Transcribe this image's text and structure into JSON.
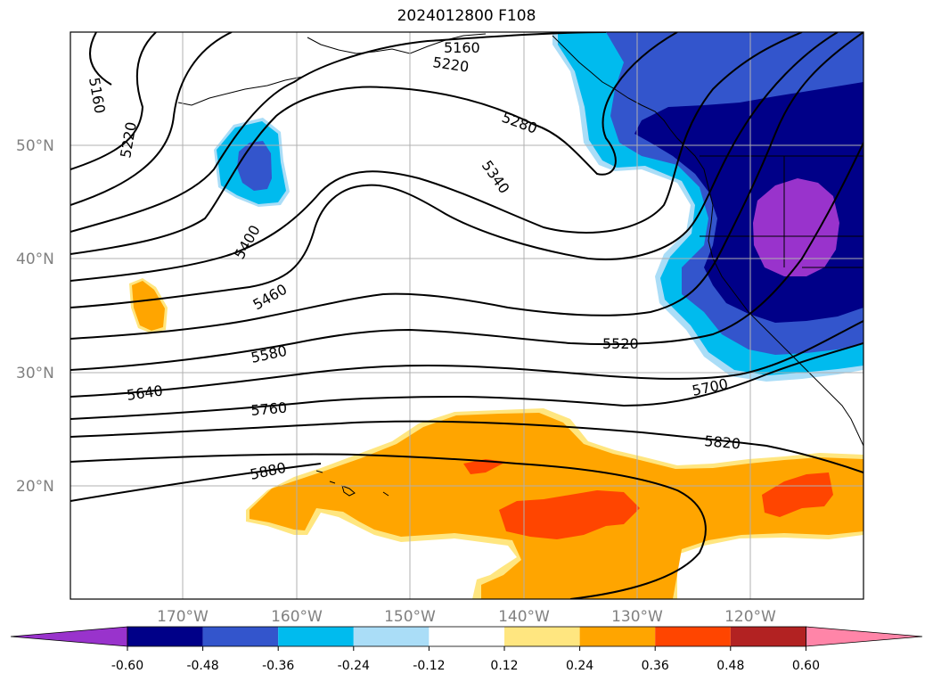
{
  "title": "2024012800 F108",
  "latitude_labels": [
    "50°N",
    "40°N",
    "30°N",
    "20°N"
  ],
  "longitude_labels": [
    "170°W",
    "160°W",
    "150°W",
    "140°W",
    "130°W",
    "120°W"
  ],
  "contour_labels": [
    "5160",
    "5160",
    "5220",
    "5220",
    "5280",
    "5340",
    "5400",
    "5460",
    "5520",
    "5580",
    "5640",
    "5700",
    "5760",
    "5820",
    "5880"
  ],
  "colorbar": {
    "tick_labels": [
      "-0.60",
      "-0.48",
      "-0.36",
      "-0.24",
      "-0.12",
      "0.12",
      "0.24",
      "0.36",
      "0.48",
      "0.60"
    ],
    "colors": [
      "#9933cc",
      "#000088",
      "#3355cc",
      "#00bbee",
      "#aaddf7",
      "#ffffff",
      "#ffe680",
      "#ffa500",
      "#ff4500",
      "#b22222",
      "#ff85a8"
    ]
  }
}
